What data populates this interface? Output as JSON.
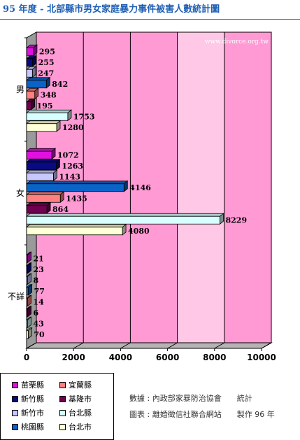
{
  "title": "95 年度 - 北部縣市男女家庭暴力事件被害人數統計圖",
  "watermark": "www.divorce.org.tw",
  "chart_data": {
    "type": "bar",
    "orientation": "horizontal",
    "style": "3d",
    "categories": [
      "男",
      "女",
      "不詳"
    ],
    "series": [
      {
        "name": "苗栗縣",
        "color": "#e010e0",
        "values": [
          295,
          1072,
          21
        ]
      },
      {
        "name": "新竹縣",
        "color": "#0a0a80",
        "values": [
          255,
          1263,
          23
        ]
      },
      {
        "name": "新竹市",
        "color": "#c8c8ff",
        "values": [
          247,
          1143,
          8
        ]
      },
      {
        "name": "桃園縣",
        "color": "#0a64c8",
        "values": [
          842,
          4146,
          77
        ]
      },
      {
        "name": "宜蘭縣",
        "color": "#ff8080",
        "values": [
          348,
          1435,
          14
        ]
      },
      {
        "name": "基隆市",
        "color": "#700050",
        "values": [
          195,
          864,
          6
        ]
      },
      {
        "name": "台北縣",
        "color": "#d8ffff",
        "values": [
          1753,
          8229,
          43
        ]
      },
      {
        "name": "台北市",
        "color": "#ffffd8",
        "values": [
          1280,
          4080,
          70
        ]
      }
    ],
    "xlim": [
      0,
      10000
    ],
    "xticks": [
      "0",
      "2000",
      "4000",
      "6000",
      "8000",
      "10000"
    ],
    "grid": true,
    "background_colors": {
      "plot": "#ff9ad5",
      "plot_band": "#ffc8e6",
      "wall": "#9a9a9a"
    }
  },
  "legend": {
    "items": [
      {
        "label": "苗栗縣",
        "color": "#e010e0"
      },
      {
        "label": "宜蘭縣",
        "color": "#ff8080"
      },
      {
        "label": "新竹縣",
        "color": "#0a0a80"
      },
      {
        "label": "基隆市",
        "color": "#700050"
      },
      {
        "label": "新竹市",
        "color": "#c8c8ff"
      },
      {
        "label": "台北縣",
        "color": "#d8ffff"
      },
      {
        "label": "桃園縣",
        "color": "#0a64c8"
      },
      {
        "label": "台北市",
        "color": "#ffffd8"
      }
    ]
  },
  "source": {
    "line1": "數據 : 內政部家暴防治協會　　統計",
    "line2": "圖表 : 離婚徵信社聯合網站　　製作 96 年"
  }
}
